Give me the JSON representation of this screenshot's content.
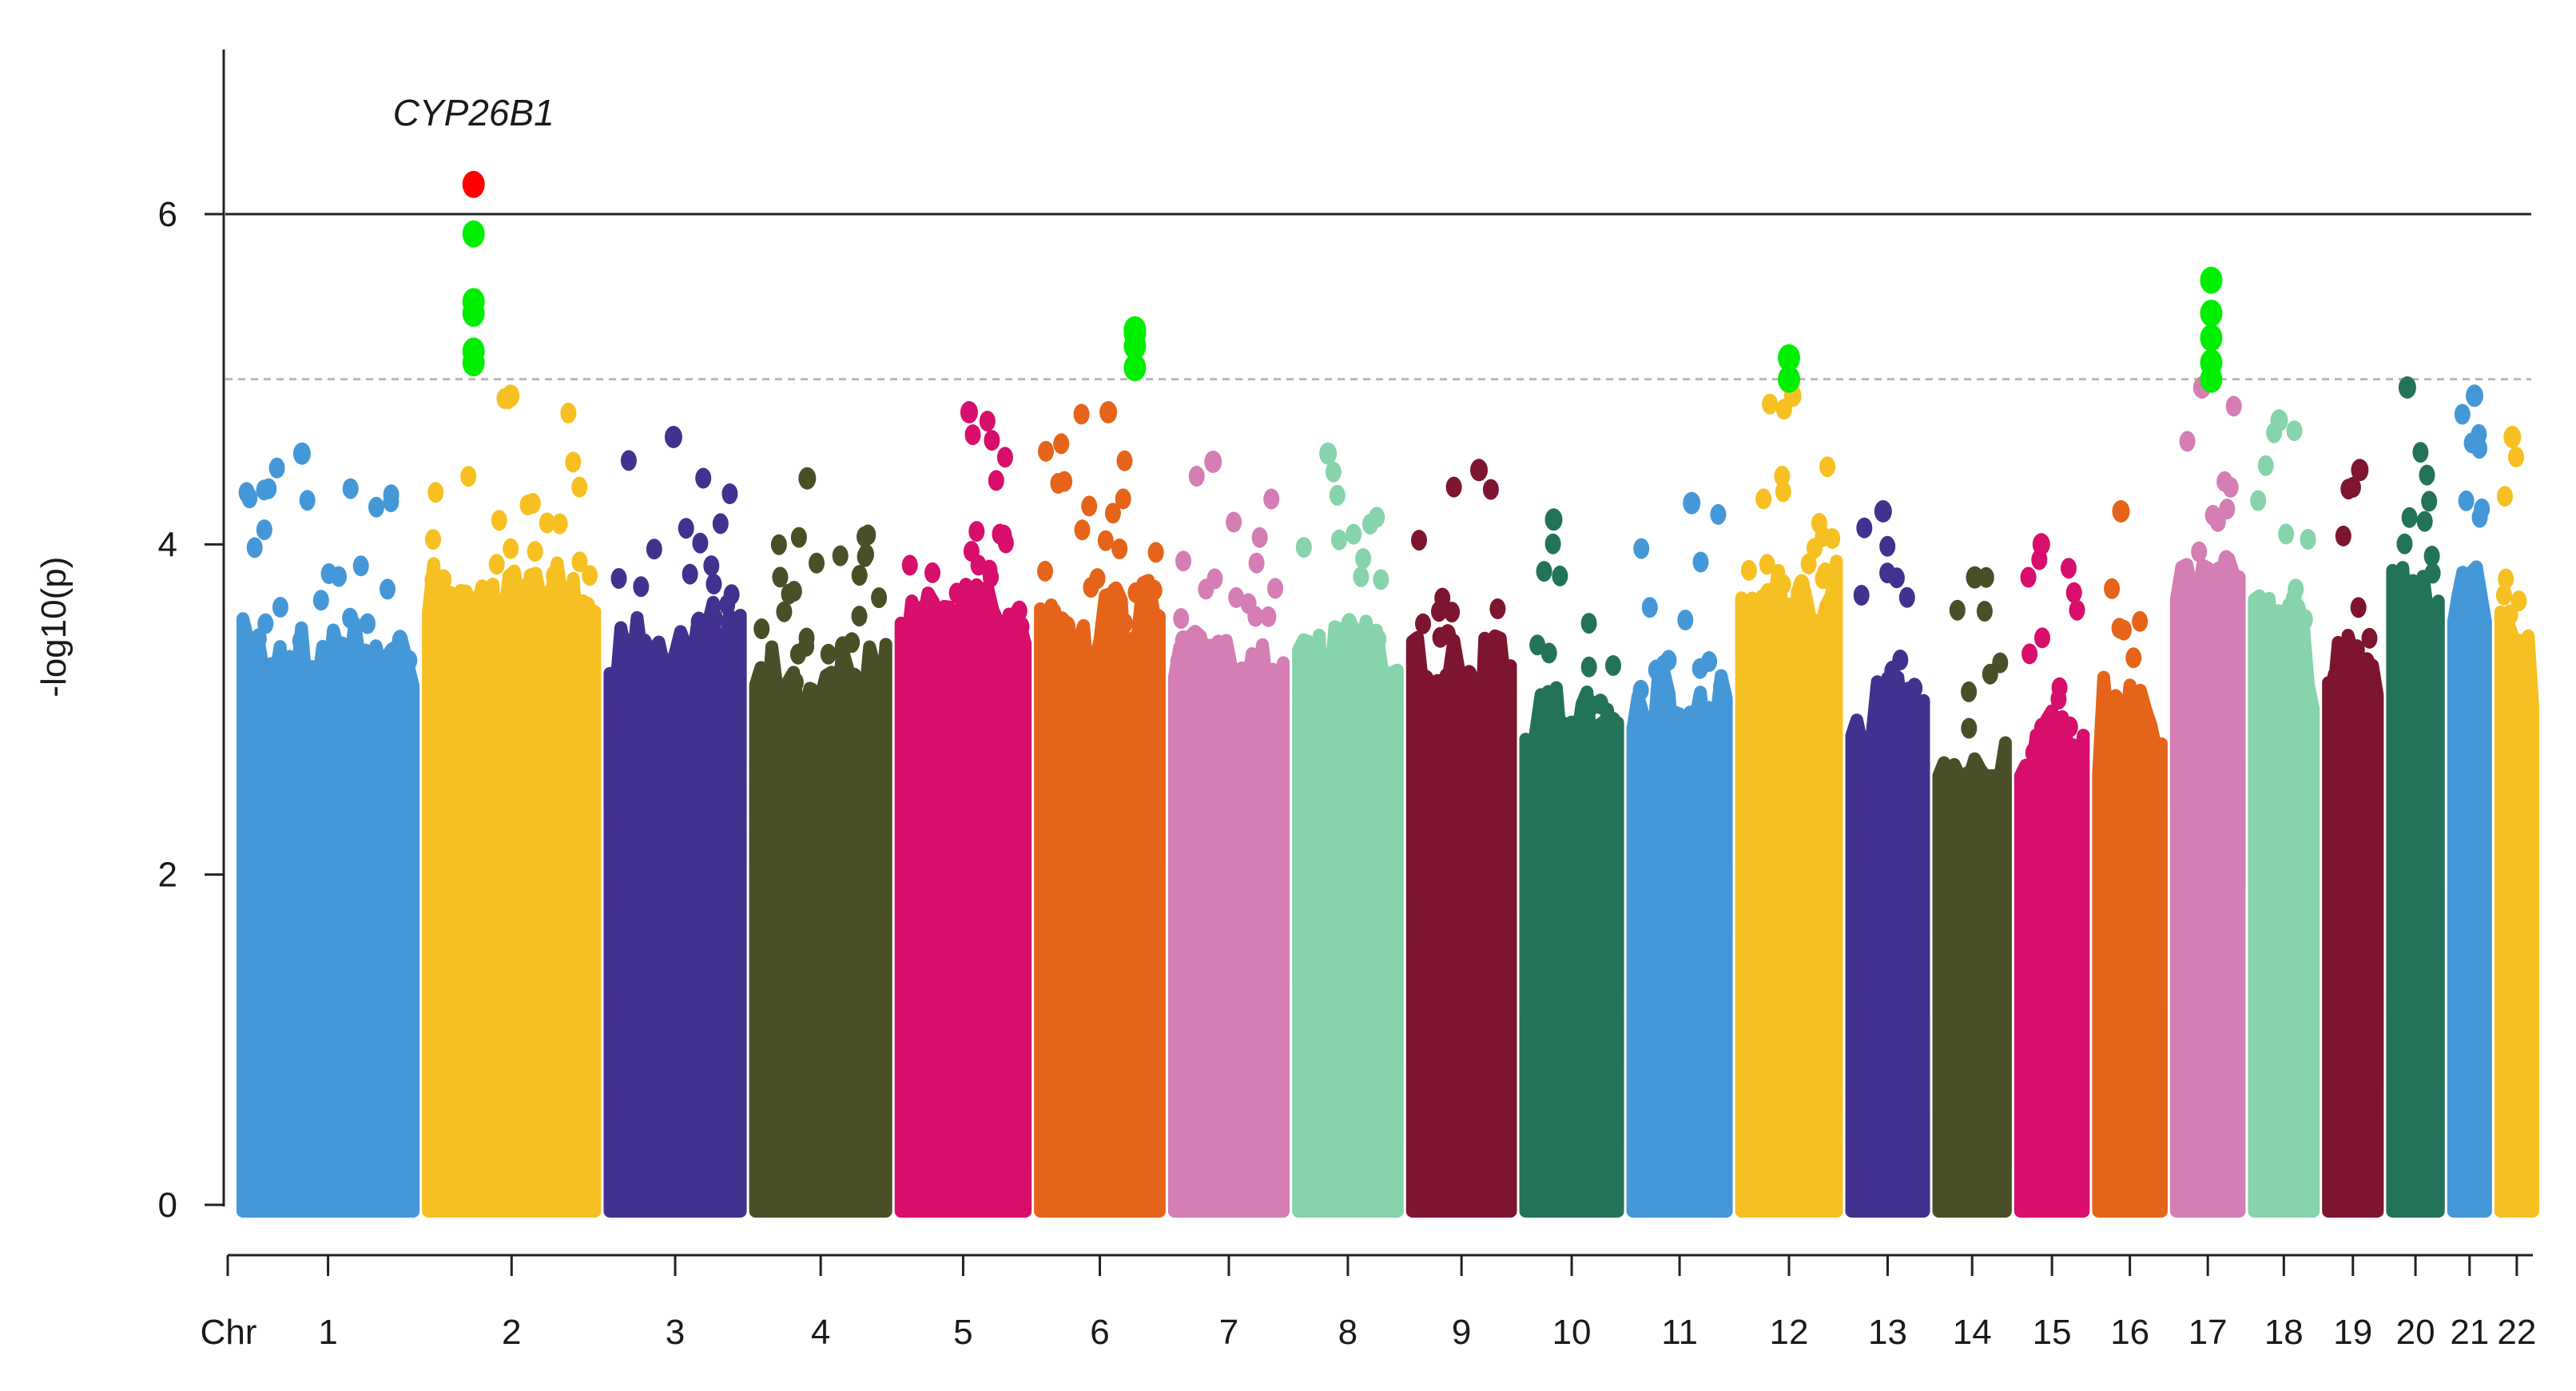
{
  "chart_data": {
    "type": "scatter",
    "subtype": "manhattan",
    "title": "",
    "xlabel": "Chr",
    "ylabel": "-log10(p)",
    "ylim": [
      0,
      7
    ],
    "yticks": [
      0,
      2,
      4,
      6
    ],
    "genome_wide_threshold": 6,
    "suggestive_threshold": 5,
    "annotation": {
      "label": "CYP26B1",
      "chromosome": "2",
      "value": 6.2
    },
    "chromosomes": [
      {
        "label": "1",
        "color": "#4598d8",
        "top": 4.55
      },
      {
        "label": "2",
        "color": "#f7c022",
        "top": 4.9
      },
      {
        "label": "3",
        "color": "#43318f",
        "top": 4.65
      },
      {
        "label": "4",
        "color": "#494f27",
        "top": 4.4
      },
      {
        "label": "5",
        "color": "#d70e6b",
        "top": 4.8
      },
      {
        "label": "6",
        "color": "#e5641a",
        "top": 4.8
      },
      {
        "label": "7",
        "color": "#d57db5",
        "top": 4.5
      },
      {
        "label": "8",
        "color": "#86d3ac",
        "top": 4.55
      },
      {
        "label": "9",
        "color": "#7d1530",
        "top": 4.45
      },
      {
        "label": "10",
        "color": "#23735a",
        "top": 4.15
      },
      {
        "label": "11",
        "color": "#4598d8",
        "top": 4.25
      },
      {
        "label": "12",
        "color": "#f7c022",
        "top": 4.9
      },
      {
        "label": "13",
        "color": "#43318f",
        "top": 4.2
      },
      {
        "label": "14",
        "color": "#494f27",
        "top": 3.8
      },
      {
        "label": "15",
        "color": "#d70e6b",
        "top": 4.0
      },
      {
        "label": "16",
        "color": "#e5641a",
        "top": 4.2
      },
      {
        "label": "17",
        "color": "#d57db5",
        "top": 4.95
      },
      {
        "label": "18",
        "color": "#86d3ac",
        "top": 4.75
      },
      {
        "label": "19",
        "color": "#7d1530",
        "top": 4.45
      },
      {
        "label": "20",
        "color": "#23735a",
        "top": 4.95
      },
      {
        "label": "21",
        "color": "#4598d8",
        "top": 4.9
      },
      {
        "label": "22",
        "color": "#f7c022",
        "top": 4.65
      }
    ],
    "significant_points": [
      {
        "chromosome": "2",
        "value": 6.18,
        "color": "#ff0000"
      },
      {
        "chromosome": "2",
        "value": 5.88,
        "color": "#00ee00"
      },
      {
        "chromosome": "2",
        "value": 5.47,
        "color": "#00ee00"
      },
      {
        "chromosome": "2",
        "value": 5.4,
        "color": "#00ee00"
      },
      {
        "chromosome": "2",
        "value": 5.17,
        "color": "#00ee00"
      },
      {
        "chromosome": "2",
        "value": 5.1,
        "color": "#00ee00"
      },
      {
        "chromosome": "6",
        "value": 5.28,
        "color": "#00ee00"
      },
      {
        "chromosome": "6",
        "value": 5.3,
        "color": "#00ee00"
      },
      {
        "chromosome": "6",
        "value": 5.2,
        "color": "#00ee00"
      },
      {
        "chromosome": "6",
        "value": 5.07,
        "color": "#00ee00"
      },
      {
        "chromosome": "12",
        "value": 5.13,
        "color": "#00ee00"
      },
      {
        "chromosome": "12",
        "value": 5.0,
        "color": "#00ee00"
      },
      {
        "chromosome": "17",
        "value": 5.6,
        "color": "#00ee00"
      },
      {
        "chromosome": "17",
        "value": 5.4,
        "color": "#00ee00"
      },
      {
        "chromosome": "17",
        "value": 5.25,
        "color": "#00ee00"
      },
      {
        "chromosome": "17",
        "value": 5.1,
        "color": "#00ee00"
      },
      {
        "chromosome": "17",
        "value": 5.0,
        "color": "#00ee00"
      }
    ]
  }
}
